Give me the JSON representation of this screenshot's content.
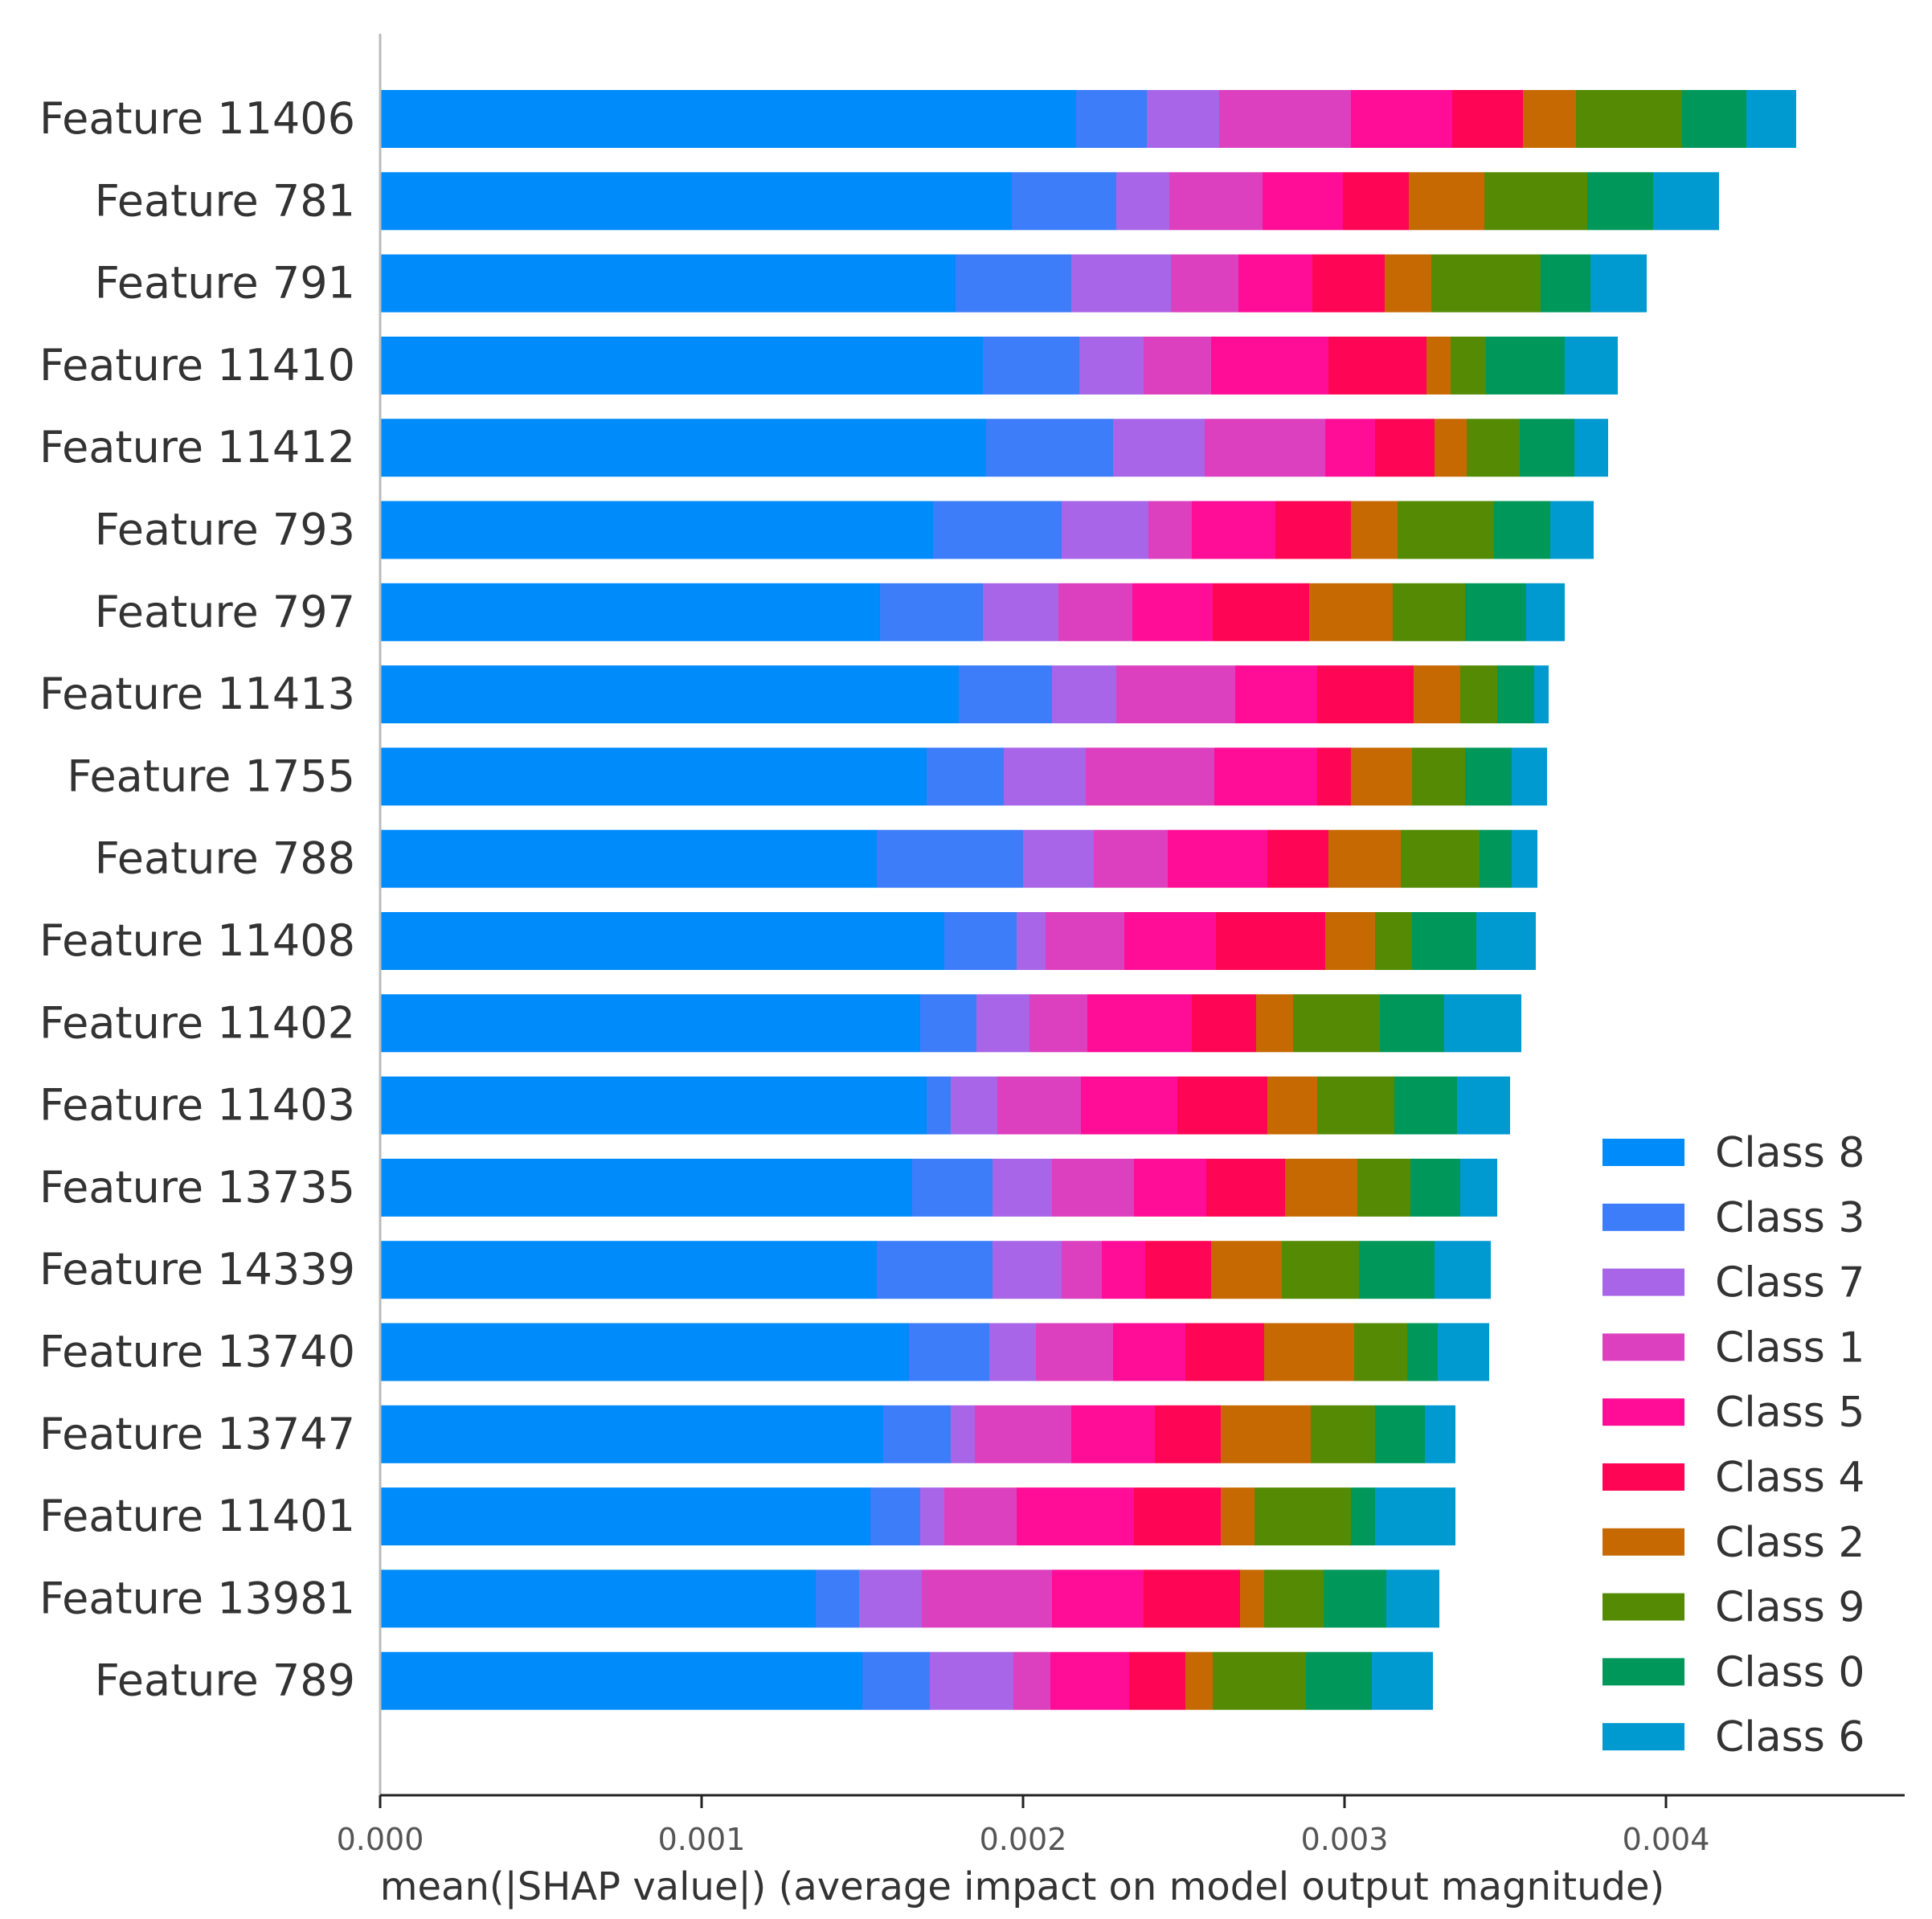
{
  "chart_data": {
    "type": "bar",
    "orientation": "horizontal",
    "stacked": true,
    "title": "",
    "xlabel": "mean(|SHAP value|) (average impact on model output magnitude)",
    "ylabel": "",
    "xlim": [
      0,
      0.00465
    ],
    "xticks": [
      "0.000",
      "0.001",
      "0.002",
      "0.003",
      "0.004"
    ],
    "xtick_values": [
      0,
      0.001,
      0.002,
      0.003,
      0.004
    ],
    "grid": false,
    "legend_position": "bottom-right",
    "categories": [
      "Feature 11406",
      "Feature 781",
      "Feature 791",
      "Feature 11410",
      "Feature 11412",
      "Feature 793",
      "Feature 797",
      "Feature 11413",
      "Feature 1755",
      "Feature 788",
      "Feature 11408",
      "Feature 11402",
      "Feature 11403",
      "Feature 13735",
      "Feature 14339",
      "Feature 13740",
      "Feature 13747",
      "Feature 11401",
      "Feature 13981",
      "Feature 789"
    ],
    "series": [
      {
        "name": "Class 8",
        "color": "#008bfb",
        "values": [
          0.002165,
          0.001965,
          0.00179,
          0.001875,
          0.001885,
          0.00172,
          0.001555,
          0.0018,
          0.0017,
          0.001545,
          0.001755,
          0.00168,
          0.0017,
          0.001655,
          0.001545,
          0.001645,
          0.001565,
          0.001525,
          0.001355,
          0.0015
        ]
      },
      {
        "name": "Class 3",
        "color": "#3d7df9",
        "values": [
          0.00022,
          0.000325,
          0.00036,
          0.0003,
          0.000395,
          0.0004,
          0.00032,
          0.00029,
          0.00024,
          0.000455,
          0.000225,
          0.000175,
          7.5e-05,
          0.00025,
          0.00036,
          0.00025,
          0.00021,
          0.000155,
          0.000135,
          0.00021
        ]
      },
      {
        "name": "Class 7",
        "color": "#a865e8",
        "values": [
          0.000225,
          0.000165,
          0.00031,
          0.0002,
          0.000285,
          0.00027,
          0.000235,
          0.0002,
          0.000255,
          0.00022,
          9e-05,
          0.000165,
          0.000145,
          0.000185,
          0.000215,
          0.000145,
          7.5e-05,
          7.5e-05,
          0.000195,
          0.00026
        ]
      },
      {
        "name": "Class 1",
        "color": "#dc40bf",
        "values": [
          0.00041,
          0.00029,
          0.00021,
          0.00021,
          0.000375,
          0.000135,
          0.00023,
          0.00037,
          0.0004,
          0.00023,
          0.000245,
          0.00018,
          0.00026,
          0.000255,
          0.000125,
          0.00024,
          0.0003,
          0.000225,
          0.000405,
          0.000115
        ]
      },
      {
        "name": "Class 5",
        "color": "#ff0d97",
        "values": [
          0.000315,
          0.00025,
          0.00023,
          0.000365,
          0.000155,
          0.00026,
          0.00025,
          0.000255,
          0.00032,
          0.00031,
          0.000285,
          0.000325,
          0.0003,
          0.000225,
          0.000135,
          0.000225,
          0.00026,
          0.000365,
          0.000285,
          0.000245
        ]
      },
      {
        "name": "Class 4",
        "color": "#ff0555",
        "values": [
          0.00022,
          0.000205,
          0.000225,
          0.000305,
          0.000185,
          0.000235,
          0.0003,
          0.0003,
          0.000105,
          0.00019,
          0.00034,
          0.0002,
          0.00028,
          0.000245,
          0.000205,
          0.000245,
          0.000205,
          0.00027,
          0.0003,
          0.000175
        ]
      },
      {
        "name": "Class 2",
        "color": "#c76903",
        "values": [
          0.000165,
          0.000235,
          0.000145,
          7.5e-05,
          0.0001,
          0.000145,
          0.00026,
          0.000145,
          0.00019,
          0.000225,
          0.000155,
          0.000115,
          0.000155,
          0.000225,
          0.00022,
          0.00028,
          0.00028,
          0.000105,
          7.5e-05,
          8.5e-05
        ]
      },
      {
        "name": "Class 9",
        "color": "#558a05",
        "values": [
          0.00033,
          0.00032,
          0.00034,
          0.00011,
          0.000165,
          0.0003,
          0.000225,
          0.000115,
          0.000165,
          0.000245,
          0.000115,
          0.00027,
          0.00024,
          0.000165,
          0.00024,
          0.000165,
          0.0002,
          0.0003,
          0.000185,
          0.00029
        ]
      },
      {
        "name": "Class 0",
        "color": "#00975b",
        "values": [
          0.0002,
          0.000205,
          0.000155,
          0.000245,
          0.00017,
          0.000175,
          0.00019,
          0.000115,
          0.000145,
          0.0001,
          0.0002,
          0.0002,
          0.000195,
          0.000155,
          0.000235,
          9.5e-05,
          0.000155,
          7.5e-05,
          0.000195,
          0.000205
        ]
      },
      {
        "name": "Class 6",
        "color": "#009ad0",
        "values": [
          0.000155,
          0.000205,
          0.000175,
          0.000165,
          0.000105,
          0.000135,
          0.00012,
          4.5e-05,
          0.00011,
          8e-05,
          0.000185,
          0.00024,
          0.000165,
          0.000115,
          0.000175,
          0.00016,
          9.5e-05,
          0.00025,
          0.000165,
          0.00019
        ]
      }
    ]
  }
}
